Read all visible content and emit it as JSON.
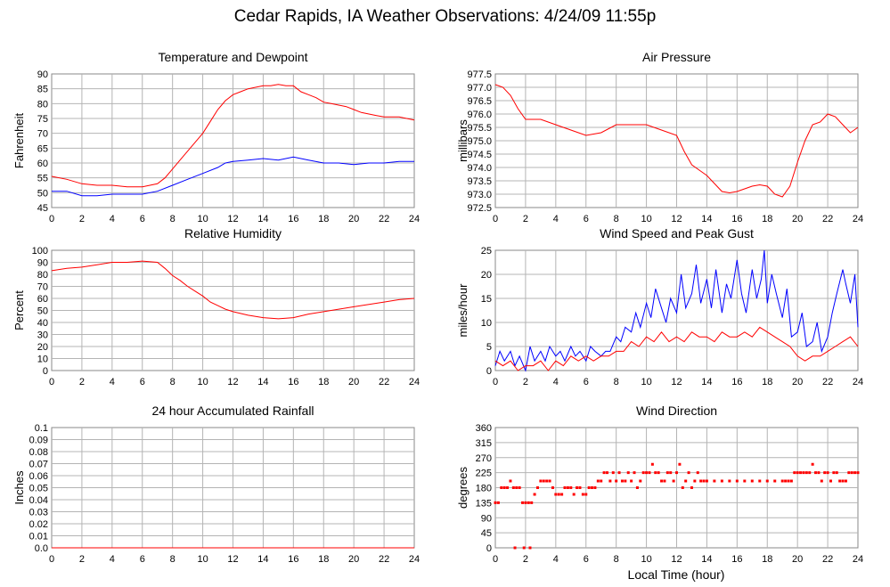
{
  "page_title": "Cedar Rapids, IA Weather Observations: 4/24/09 11:55p",
  "x_axis_label": "Local Time (hour)",
  "x_ticks": [
    "0",
    "2",
    "4",
    "6",
    "8",
    "10",
    "12",
    "14",
    "16",
    "18",
    "20",
    "22",
    "24"
  ],
  "chart_data": [
    {
      "id": "temp",
      "type": "line",
      "title": "Temperature and Dewpoint",
      "ylabel": "Fahrenheit",
      "ylim": [
        45,
        90
      ],
      "yticks": [
        "45",
        "50",
        "55",
        "60",
        "65",
        "70",
        "75",
        "80",
        "85",
        "90"
      ],
      "xlim": [
        0,
        24
      ],
      "grid": true,
      "series": [
        {
          "color": "#ff0000",
          "x": [
            0,
            1,
            2,
            3,
            4,
            5,
            6,
            7,
            7.5,
            8,
            8.5,
            9,
            9.5,
            10,
            10.5,
            11,
            11.5,
            12,
            12.5,
            13,
            13.5,
            14,
            14.5,
            15,
            15.5,
            16,
            16.5,
            17,
            17.5,
            18,
            18.5,
            19,
            19.5,
            20,
            20.5,
            21,
            21.5,
            22,
            22.5,
            23,
            23.5,
            24
          ],
          "y": [
            55.5,
            54.5,
            53,
            52.5,
            52.5,
            52,
            52,
            53,
            55,
            58,
            61,
            64,
            67,
            70,
            74,
            78,
            81,
            83,
            84,
            85,
            85.5,
            86,
            86,
            86.5,
            86,
            86,
            84,
            83,
            82,
            80.5,
            80,
            79.5,
            79,
            78,
            77,
            76.5,
            76,
            75.5,
            75.5,
            75.5,
            75,
            74.5
          ]
        },
        {
          "color": "#0000ff",
          "x": [
            0,
            1,
            2,
            3,
            4,
            5,
            6,
            7,
            8,
            9,
            10,
            11,
            11.5,
            12,
            13,
            14,
            15,
            16,
            17,
            18,
            19,
            20,
            21,
            22,
            23,
            24
          ],
          "y": [
            50.5,
            50.5,
            49,
            49,
            49.5,
            49.5,
            49.5,
            50.5,
            52.5,
            54.5,
            56.5,
            58.5,
            60,
            60.5,
            61,
            61.5,
            61,
            62,
            61,
            60,
            60,
            59.5,
            60,
            60,
            60.5,
            60.5
          ]
        }
      ]
    },
    {
      "id": "pressure",
      "type": "line",
      "title": "Air Pressure",
      "ylabel": "millibars",
      "ylim": [
        972.5,
        977.5
      ],
      "yticks": [
        "972.5",
        "973.0",
        "973.5",
        "974.0",
        "974.5",
        "975.0",
        "975.5",
        "976.0",
        "976.5",
        "977.0",
        "977.5"
      ],
      "xlim": [
        0,
        24
      ],
      "grid": true,
      "series": [
        {
          "color": "#ff0000",
          "x": [
            0,
            0.5,
            1,
            1.5,
            2,
            3,
            4,
            5,
            6,
            7,
            8,
            9,
            10,
            11,
            12,
            12.5,
            13,
            13.5,
            14,
            14.5,
            15,
            15.5,
            16,
            16.5,
            17,
            17.5,
            18,
            18.5,
            19,
            19.5,
            20,
            20.5,
            21,
            21.5,
            22,
            22.5,
            23,
            23.5,
            24
          ],
          "y": [
            977.1,
            977.0,
            976.7,
            976.2,
            975.8,
            975.8,
            975.6,
            975.4,
            975.2,
            975.3,
            975.6,
            975.6,
            975.6,
            975.4,
            975.2,
            974.6,
            974.1,
            973.9,
            973.7,
            973.4,
            973.1,
            973.05,
            973.1,
            973.2,
            973.3,
            973.35,
            973.3,
            973.0,
            972.9,
            973.3,
            974.2,
            975.0,
            975.6,
            975.7,
            976.0,
            975.9,
            975.6,
            975.3,
            975.5
          ]
        }
      ]
    },
    {
      "id": "humidity",
      "type": "line",
      "title": "Relative Humidity",
      "ylabel": "Percent",
      "ylim": [
        0,
        100
      ],
      "yticks": [
        "0",
        "10",
        "20",
        "30",
        "40",
        "50",
        "60",
        "70",
        "80",
        "90",
        "100"
      ],
      "xlim": [
        0,
        24
      ],
      "grid": true,
      "series": [
        {
          "color": "#ff0000",
          "x": [
            0,
            1,
            2,
            3,
            4,
            5,
            6,
            7,
            7.5,
            8,
            8.5,
            9,
            9.5,
            10,
            10.5,
            11,
            11.5,
            12,
            13,
            14,
            15,
            16,
            17,
            18,
            19,
            20,
            21,
            22,
            23,
            24
          ],
          "y": [
            83,
            85,
            86,
            88,
            90,
            90,
            91,
            90,
            85,
            79,
            75,
            70,
            66,
            62,
            57,
            54,
            51,
            49,
            46,
            44,
            43,
            44,
            47,
            49,
            51,
            53,
            55,
            57,
            59,
            60
          ]
        }
      ]
    },
    {
      "id": "wind",
      "type": "line",
      "title": "Wind Speed and Peak Gust",
      "ylabel": "miles/hour",
      "ylim": [
        0,
        25
      ],
      "yticks": [
        "0",
        "5",
        "10",
        "15",
        "20",
        "25"
      ],
      "xlim": [
        0,
        24
      ],
      "grid": true,
      "series": [
        {
          "color": "#0000ff",
          "x": [
            0,
            0.3,
            0.6,
            1,
            1.3,
            1.6,
            2,
            2.3,
            2.6,
            3,
            3.3,
            3.6,
            4,
            4.3,
            4.6,
            5,
            5.3,
            5.6,
            6,
            6.3,
            6.6,
            7,
            7.3,
            7.6,
            8,
            8.3,
            8.6,
            9,
            9.3,
            9.6,
            10,
            10.3,
            10.6,
            11,
            11.3,
            11.6,
            12,
            12.3,
            12.6,
            13,
            13.3,
            13.6,
            14,
            14.3,
            14.6,
            15,
            15.3,
            15.6,
            16,
            16.3,
            16.6,
            17,
            17.3,
            17.6,
            17.8,
            18,
            18.3,
            18.6,
            19,
            19.3,
            19.6,
            20,
            20.3,
            20.6,
            21,
            21.3,
            21.6,
            22,
            22.3,
            22.6,
            23,
            23.2,
            23.5,
            23.8,
            24
          ],
          "y": [
            1,
            4,
            2,
            4,
            1,
            3,
            0,
            5,
            2,
            4,
            2,
            5,
            3,
            4,
            2,
            5,
            3,
            4,
            2,
            5,
            4,
            3,
            4,
            4,
            7,
            6,
            9,
            8,
            12,
            9,
            14,
            11,
            17,
            13,
            10,
            15,
            12,
            20,
            13,
            16,
            22,
            14,
            19,
            13,
            21,
            12,
            18,
            15,
            23,
            16,
            12,
            21,
            15,
            19,
            25,
            14,
            20,
            16,
            11,
            17,
            7,
            8,
            12,
            5,
            6,
            10,
            4,
            7,
            12,
            16,
            21,
            18,
            14,
            20,
            9
          ]
        },
        {
          "color": "#ff0000",
          "x": [
            0,
            0.5,
            1,
            1.5,
            2,
            2.5,
            3,
            3.5,
            4,
            4.5,
            5,
            5.5,
            6,
            6.5,
            7,
            7.5,
            8,
            8.5,
            9,
            9.5,
            10,
            10.5,
            11,
            11.5,
            12,
            12.5,
            13,
            13.5,
            14,
            14.5,
            15,
            15.5,
            16,
            16.5,
            17,
            17.5,
            18,
            18.5,
            19,
            19.5,
            20,
            20.5,
            21,
            21.5,
            22,
            22.5,
            23,
            23.5,
            24
          ],
          "y": [
            2,
            1,
            2,
            0,
            1,
            1,
            2,
            0,
            2,
            1,
            3,
            2,
            3,
            2,
            3,
            3,
            4,
            4,
            6,
            5,
            7,
            6,
            8,
            6,
            7,
            6,
            8,
            7,
            7,
            6,
            8,
            7,
            7,
            8,
            7,
            9,
            8,
            7,
            6,
            5,
            3,
            2,
            3,
            3,
            4,
            5,
            6,
            7,
            5
          ]
        }
      ]
    },
    {
      "id": "rain",
      "type": "line",
      "title": "24 hour Accumulated Rainfall",
      "ylabel": "Inches",
      "ylim": [
        0,
        0.1
      ],
      "yticks": [
        "0.0",
        "0.01",
        "0.02",
        "0.03",
        "0.04",
        "0.05",
        "0.06",
        "0.07",
        "0.08",
        "0.09",
        "0.1"
      ],
      "xlim": [
        0,
        24
      ],
      "grid": true,
      "series": [
        {
          "color": "#ff0000",
          "x": [
            0,
            24
          ],
          "y": [
            0,
            0
          ]
        }
      ]
    },
    {
      "id": "direction",
      "type": "scatter",
      "title": "Wind Direction",
      "ylabel": "degrees",
      "ylim": [
        0,
        360
      ],
      "yticks": [
        "0",
        "45",
        "90",
        "135",
        "180",
        "225",
        "270",
        "315",
        "360"
      ],
      "xlim": [
        0,
        24
      ],
      "grid": true,
      "series": [
        {
          "color": "#ff0000",
          "x": [
            0,
            0.2,
            0.4,
            0.6,
            0.8,
            1.0,
            1.2,
            1.4,
            1.6,
            1.8,
            2.0,
            2.2,
            2.4,
            2.6,
            2.8,
            3.0,
            3.2,
            3.4,
            3.6,
            3.8,
            4.0,
            4.2,
            4.4,
            4.6,
            4.8,
            5.0,
            5.2,
            5.4,
            5.6,
            5.8,
            6.0,
            6.2,
            6.4,
            6.6,
            6.8,
            7.0,
            7.2,
            7.4,
            7.6,
            7.8,
            8.0,
            8.2,
            8.4,
            8.6,
            8.8,
            9.0,
            9.2,
            9.4,
            9.6,
            9.8,
            10.0,
            10.2,
            10.4,
            10.6,
            10.8,
            11.0,
            11.2,
            11.4,
            11.6,
            11.8,
            12.0,
            12.2,
            12.4,
            12.6,
            12.8,
            13.0,
            13.2,
            13.4,
            13.6,
            13.8,
            14.0,
            14.5,
            15,
            15.5,
            16,
            16.5,
            17,
            17.5,
            18,
            18.5,
            19,
            19.2,
            19.4,
            19.6,
            19.8,
            20.0,
            20.2,
            20.4,
            20.6,
            20.8,
            21.0,
            21.2,
            21.4,
            21.6,
            21.8,
            22.0,
            22.2,
            22.4,
            22.6,
            22.8,
            23.0,
            23.2,
            23.4,
            23.6,
            23.8,
            24.0,
            1.3,
            1.9,
            2.3
          ],
          "y": [
            135,
            135,
            180,
            180,
            180,
            200,
            180,
            180,
            180,
            135,
            135,
            135,
            135,
            160,
            180,
            200,
            200,
            200,
            200,
            180,
            160,
            160,
            160,
            180,
            180,
            180,
            160,
            180,
            180,
            160,
            160,
            180,
            180,
            180,
            200,
            200,
            225,
            225,
            200,
            225,
            200,
            225,
            200,
            200,
            225,
            200,
            225,
            180,
            200,
            225,
            225,
            225,
            250,
            225,
            225,
            200,
            200,
            225,
            225,
            200,
            225,
            250,
            180,
            200,
            225,
            180,
            200,
            225,
            200,
            200,
            200,
            200,
            200,
            200,
            200,
            200,
            200,
            200,
            200,
            200,
            200,
            200,
            200,
            200,
            225,
            225,
            225,
            225,
            225,
            225,
            250,
            225,
            225,
            200,
            225,
            225,
            200,
            225,
            225,
            200,
            200,
            200,
            225,
            225,
            225,
            225,
            0,
            0,
            0
          ]
        }
      ]
    }
  ]
}
